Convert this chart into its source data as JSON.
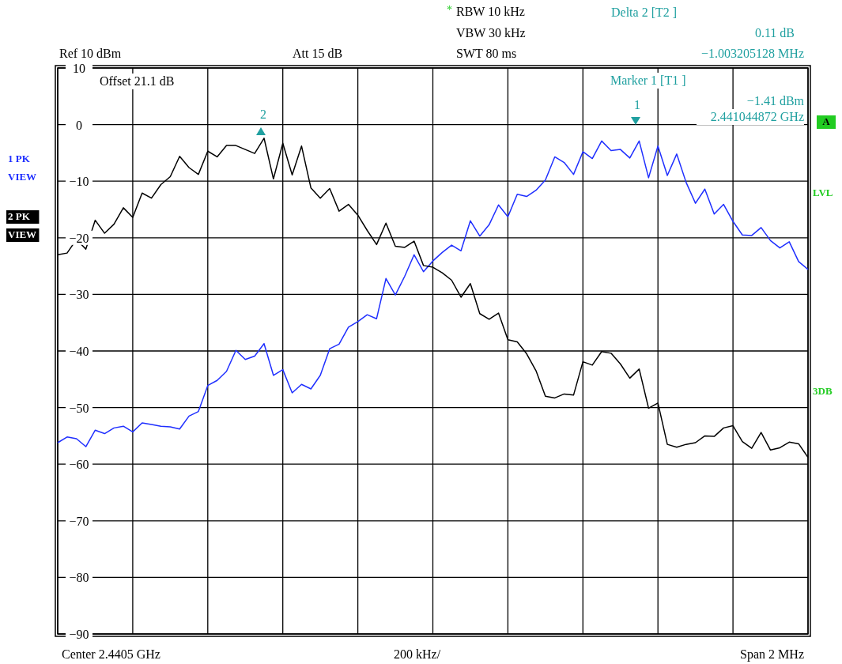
{
  "chart_data": {
    "type": "line",
    "categories": [
      null,
      null,
      null,
      null,
      null,
      null,
      null,
      null,
      null,
      null,
      null,
      null,
      null,
      null,
      null,
      null,
      null,
      null,
      null,
      null,
      null,
      null,
      null,
      null,
      null,
      null,
      null,
      null,
      null,
      null,
      null,
      null,
      null,
      null,
      null,
      null,
      null,
      null,
      null,
      null,
      null,
      null,
      null,
      null,
      null,
      null,
      null,
      null,
      null,
      null,
      null,
      null,
      null,
      null,
      null,
      null,
      null,
      null,
      null,
      null,
      null,
      null,
      null,
      null,
      null,
      null,
      null,
      null,
      null,
      null,
      null,
      null,
      null,
      null,
      null,
      null,
      null,
      null,
      null,
      null,
      null
    ],
    "ylim": [
      -90,
      10
    ],
    "yticks": [
      10,
      0,
      {
        "value": -10,
        "label": "−10"
      },
      {
        "value": -20,
        "label": "−20"
      },
      {
        "value": -30,
        "label": "−30"
      },
      {
        "value": -40,
        "label": "−40"
      },
      {
        "value": -50,
        "label": "−50"
      },
      {
        "value": -60,
        "label": "−60"
      },
      {
        "value": -70,
        "label": "−70"
      },
      {
        "value": -80,
        "label": "−80"
      },
      {
        "value": -90,
        "label": "−90"
      }
    ],
    "grid": true,
    "line_style": "solid",
    "series": [
      {
        "color": "#1f2fff",
        "values": [
          -56.2,
          -55.2,
          -55.5,
          -56.9,
          -54.0,
          -54.6,
          -53.6,
          -53.3,
          -54.3,
          -52.7,
          -53.0,
          -53.3,
          -53.4,
          -53.8,
          -51.5,
          -50.7,
          -46.1,
          -45.2,
          -43.6,
          -39.9,
          -41.5,
          -40.9,
          -38.7,
          -44.3,
          -43.3,
          -47.4,
          -45.9,
          -46.7,
          -44.3,
          -39.6,
          -38.8,
          -35.8,
          -34.8,
          -33.6,
          -34.3,
          -27.2,
          -30.1,
          -26.8,
          -23.0,
          -26.0,
          -24.1,
          -22.6,
          -21.3,
          -22.3,
          -17.0,
          -19.7,
          -17.7,
          -14.2,
          -16.3,
          -12.3,
          -12.7,
          -11.6,
          -9.8,
          -5.7,
          -6.7,
          -8.8,
          -4.8,
          -6.0,
          -2.9,
          -4.6,
          -4.4,
          -5.9,
          -2.9,
          -9.4,
          -3.8,
          -9.0,
          -5.2,
          -10.2,
          -13.9,
          -11.4,
          -15.8,
          -14.1,
          -17.1,
          -19.5,
          -19.6,
          -18.2,
          -20.5,
          -21.8,
          -20.7,
          -24.2,
          -25.6
        ]
      },
      {
        "color": "#000000",
        "values": [
          -23.0,
          -22.7,
          -20.3,
          -22.0,
          -16.9,
          -19.2,
          -17.6,
          -14.7,
          -16.4,
          -12.1,
          -13.0,
          -10.6,
          -9.2,
          -5.6,
          -7.6,
          -8.8,
          -4.7,
          -5.7,
          -3.7,
          -3.7,
          -4.4,
          -5.1,
          -2.4,
          -9.6,
          -3.3,
          -8.9,
          -3.8,
          -11.2,
          -13.0,
          -11.3,
          -15.3,
          -14.1,
          -16.0,
          -18.7,
          -21.2,
          -17.4,
          -21.5,
          -21.7,
          -20.6,
          -24.9,
          -25.2,
          -26.2,
          -27.5,
          -30.5,
          -28.1,
          -33.4,
          -34.4,
          -33.3,
          -38.0,
          -38.4,
          -40.5,
          -43.5,
          -48.0,
          -48.3,
          -47.6,
          -47.8,
          -41.9,
          -42.5,
          -40.1,
          -40.4,
          -42.3,
          -44.8,
          -43.2,
          -50.1,
          -49.2,
          -56.5,
          -57.0,
          -56.5,
          -56.2,
          -55.0,
          -55.1,
          -53.6,
          -53.2,
          -56.0,
          -57.2,
          -54.4,
          -57.5,
          -57.1,
          -56.1,
          -56.4,
          -58.8
        ]
      }
    ],
    "annotations": [
      "*",
      "RBW 10 kHz",
      "VBW 30 kHz",
      "SWT 80 ms",
      "Ref 10 dBm",
      "Att 15 dB",
      "Delta 2 [T2 ]",
      "0.11 dB",
      "−1.003205128 MHz",
      "Marker 1 [T1 ]",
      "−1.41 dBm",
      "2.441044872 GHz",
      "Offset 21.1 dB",
      "1 PK",
      "VIEW",
      "2 PK",
      "VIEW",
      "A",
      "LVL",
      "3DB",
      "Center 2.4405 GHz",
      "200 kHz/",
      "Span 2 MHz",
      "2",
      "1"
    ]
  }
}
